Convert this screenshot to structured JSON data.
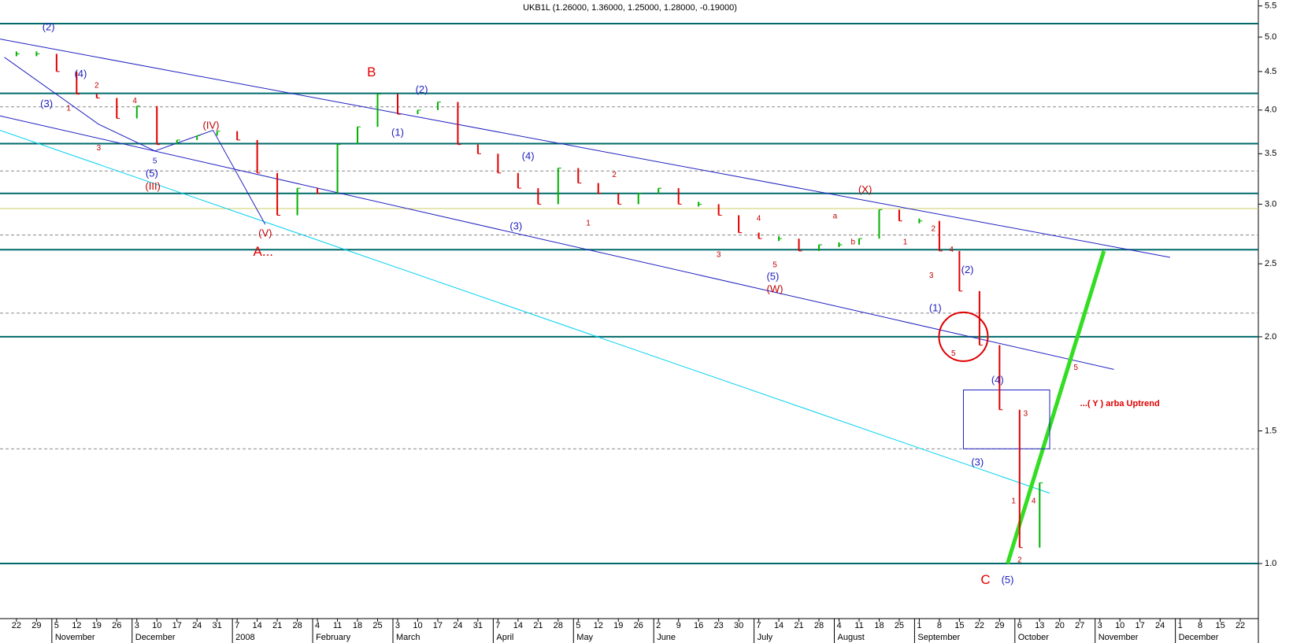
{
  "chart_data": {
    "type": "price",
    "title": "UKB1L (1.26000, 1.36000, 1.25000, 1.28000, -0.19000)",
    "categories": [
      "22",
      "29",
      "5",
      "12",
      "19",
      "26",
      "3",
      "10",
      "17",
      "24",
      "31",
      "7",
      "14",
      "21",
      "28",
      "4",
      "11",
      "18",
      "25",
      "3",
      "10",
      "17",
      "24",
      "31",
      "7",
      "14",
      "21",
      "28",
      "5",
      "12",
      "19",
      "26",
      "2",
      "9",
      "16",
      "23",
      "30",
      "7",
      "14",
      "21",
      "28",
      "4",
      "11",
      "18",
      "25",
      "1",
      "8",
      "15",
      "22",
      "29",
      "6",
      "13",
      "20",
      "27",
      "3",
      "10",
      "17",
      "24",
      "1",
      "8",
      "15",
      "22"
    ],
    "month_labels": [
      null,
      null,
      "November",
      null,
      null,
      null,
      "December",
      null,
      null,
      null,
      null,
      "2008",
      null,
      null,
      null,
      "February",
      null,
      null,
      null,
      "March",
      null,
      null,
      null,
      null,
      "April",
      null,
      null,
      null,
      "May",
      null,
      null,
      null,
      "June",
      null,
      null,
      null,
      null,
      "July",
      null,
      null,
      null,
      "August",
      null,
      null,
      null,
      "September",
      null,
      null,
      null,
      null,
      "October",
      null,
      null,
      null,
      "November",
      null,
      null,
      null,
      "December",
      null,
      null,
      null
    ],
    "values": [
      4.75,
      4.75,
      4.5,
      4.2,
      4.15,
      3.9,
      4.05,
      3.6,
      3.65,
      3.7,
      3.75,
      3.65,
      3.3,
      2.9,
      3.15,
      3.1,
      3.6,
      3.8,
      4.2,
      3.95,
      4.0,
      4.1,
      3.6,
      3.5,
      3.3,
      3.15,
      3.0,
      3.35,
      3.2,
      3.1,
      3.0,
      3.1,
      3.15,
      3.0,
      3.0,
      2.9,
      2.75,
      2.7,
      2.7,
      2.6,
      2.65,
      2.65,
      2.7,
      2.95,
      2.85,
      2.85,
      2.6,
      2.3,
      1.95,
      1.6,
      1.05,
      1.28,
      null,
      null,
      null,
      null,
      null,
      null,
      null,
      null,
      null,
      null
    ],
    "up_color": "#00b000",
    "down_color": "#e00000",
    "xlim": [
      -0.82,
      61.9
    ],
    "ylim": [
      0.845,
      5.6
    ],
    "log_scale": true,
    "yticks": [
      {
        "value": 1,
        "label": "1.0"
      },
      1.5,
      {
        "value": 2,
        "label": "2.0"
      },
      2.5,
      {
        "value": 3,
        "label": "3.0"
      },
      3.5,
      {
        "value": 4,
        "label": "4.0"
      },
      4.5,
      {
        "value": 5,
        "label": "5.0"
      },
      5.5
    ],
    "levels": [
      {
        "value": 5.21,
        "style": "solid",
        "color": "#006a6a"
      },
      {
        "value": 4.21,
        "style": "solid",
        "color": "#006a6a"
      },
      {
        "value": 3.61,
        "style": "solid",
        "color": "#006a6a"
      },
      {
        "value": 3.1,
        "style": "solid",
        "color": "#006a6a"
      },
      {
        "value": 2.61,
        "style": "solid",
        "color": "#006a6a"
      },
      {
        "value": 2.0,
        "style": "solid",
        "color": "#006a6a"
      },
      {
        "value": 1.0,
        "style": "solid",
        "color": "#006a6a"
      },
      {
        "value": 4.04,
        "style": "dashed",
        "color": "#888888"
      },
      {
        "value": 3.32,
        "style": "dashed",
        "color": "#888888"
      },
      {
        "value": 2.73,
        "style": "dashed",
        "color": "#888888"
      },
      {
        "value": 2.15,
        "style": "dashed",
        "color": "#888888"
      },
      {
        "value": 1.42,
        "style": "dashed",
        "color": "#888888"
      },
      {
        "value": 2.96,
        "style": "solid",
        "color": "#cccc66"
      }
    ],
    "trend_lines": [
      {
        "x": [
          -0.82,
          57.5
        ],
        "y": [
          4.97,
          2.55
        ],
        "color": "#2020c0",
        "width": 1
      },
      {
        "x": [
          -0.82,
          54.7
        ],
        "y": [
          3.93,
          1.81
        ],
        "color": "#2020c0",
        "width": 1
      },
      {
        "x": [
          -0.82,
          51.5
        ],
        "y": [
          3.76,
          1.24
        ],
        "color": "#00d0f0",
        "width": 1
      },
      {
        "x": [
          49.4,
          54.2
        ],
        "y": [
          1.0,
          2.6
        ],
        "color": "#33dd22",
        "width": 5
      },
      {
        "x": [
          -0.6,
          4.1,
          6.9,
          9.8,
          12.4
        ],
        "y": [
          4.7,
          3.83,
          3.53,
          3.76,
          2.82
        ],
        "color": "#2020c0",
        "width": 1
      }
    ],
    "circle": {
      "x": 47.2,
      "y": 2.0,
      "color": "#e00000"
    },
    "box": {
      "x": [
        47.2,
        51.5
      ],
      "y": [
        1.7,
        1.42
      ],
      "color": "#2020c0"
    },
    "annotations": [
      {
        "text": "(2)",
        "x": 1.6,
        "y": 5.15,
        "color": "#2020c0"
      },
      {
        "text": "(4)",
        "x": 3.2,
        "y": 4.46,
        "color": "#2020c0"
      },
      {
        "text": "(3)",
        "x": 1.5,
        "y": 4.07,
        "color": "#2020c0"
      },
      {
        "text": "1",
        "x": 2.6,
        "y": 4.02,
        "color": "#c00000"
      },
      {
        "text": "2",
        "x": 4.0,
        "y": 4.31,
        "color": "#c00000"
      },
      {
        "text": "4",
        "x": 5.9,
        "y": 4.11,
        "color": "#c00000"
      },
      {
        "text": "3",
        "x": 4.1,
        "y": 3.56,
        "color": "#c00000"
      },
      {
        "text": "5",
        "x": 6.9,
        "y": 3.42,
        "color": "#2020c0"
      },
      {
        "text": "(5)",
        "x": 6.75,
        "y": 3.29,
        "color": "#2020c0"
      },
      {
        "text": "(III)",
        "x": 6.8,
        "y": 3.16,
        "color": "#c00000"
      },
      {
        "text": "(IV)",
        "x": 9.7,
        "y": 3.81,
        "color": "#c00000"
      },
      {
        "text": "(V)",
        "x": 12.4,
        "y": 2.74,
        "color": "#c00000"
      },
      {
        "text": "A...",
        "x": 12.3,
        "y": 2.59,
        "color": "#e00000"
      },
      {
        "text": "B",
        "x": 17.7,
        "y": 4.48,
        "color": "#e00000"
      },
      {
        "text": "(2)",
        "x": 20.2,
        "y": 4.25,
        "color": "#2020c0"
      },
      {
        "text": "(1)",
        "x": 19.0,
        "y": 3.73,
        "color": "#2020c0"
      },
      {
        "text": "(4)",
        "x": 25.5,
        "y": 3.47,
        "color": "#2020c0"
      },
      {
        "text": "(3)",
        "x": 24.9,
        "y": 2.8,
        "color": "#2020c0"
      },
      {
        "text": "2",
        "x": 29.8,
        "y": 3.28,
        "color": "#c00000"
      },
      {
        "text": "1",
        "x": 28.5,
        "y": 2.83,
        "color": "#c00000"
      },
      {
        "text": "3",
        "x": 35.0,
        "y": 2.57,
        "color": "#c00000"
      },
      {
        "text": "4",
        "x": 37.0,
        "y": 2.87,
        "color": "#c00000"
      },
      {
        "text": "5",
        "x": 37.8,
        "y": 2.49,
        "color": "#c00000"
      },
      {
        "text": "(5)",
        "x": 37.7,
        "y": 2.4,
        "color": "#2020c0"
      },
      {
        "text": "(W)",
        "x": 37.8,
        "y": 2.31,
        "color": "#c00000"
      },
      {
        "text": "(X)",
        "x": 42.3,
        "y": 3.13,
        "color": "#c00000"
      },
      {
        "text": "a",
        "x": 40.8,
        "y": 2.89,
        "color": "#c00000"
      },
      {
        "text": "b",
        "x": 41.7,
        "y": 2.67,
        "color": "#c00000"
      },
      {
        "text": "1",
        "x": 44.3,
        "y": 2.67,
        "color": "#c00000"
      },
      {
        "text": "2",
        "x": 45.7,
        "y": 2.78,
        "color": "#c00000"
      },
      {
        "text": "4",
        "x": 46.6,
        "y": 2.61,
        "color": "#c00000"
      },
      {
        "text": "3",
        "x": 45.6,
        "y": 2.41,
        "color": "#c00000"
      },
      {
        "text": "(2)",
        "x": 47.4,
        "y": 2.45,
        "color": "#2020c0"
      },
      {
        "text": "(1)",
        "x": 45.8,
        "y": 2.18,
        "color": "#2020c0"
      },
      {
        "text": "5",
        "x": 46.7,
        "y": 1.9,
        "color": "#c00000"
      },
      {
        "text": "(4)",
        "x": 48.9,
        "y": 1.75,
        "color": "#2020c0"
      },
      {
        "text": "5",
        "x": 52.8,
        "y": 1.82,
        "color": "#c00000"
      },
      {
        "text": "...( Y ) arba Uptrend",
        "x": 55,
        "y": 1.63,
        "color": "#e00000"
      },
      {
        "text": "3",
        "x": 50.3,
        "y": 1.58,
        "color": "#c00000"
      },
      {
        "text": "(3)",
        "x": 47.9,
        "y": 1.36,
        "color": "#2020c0"
      },
      {
        "text": "1",
        "x": 49.7,
        "y": 1.21,
        "color": "#c00000"
      },
      {
        "text": "4",
        "x": 50.7,
        "y": 1.21,
        "color": "#c00000"
      },
      {
        "text": "2",
        "x": 50.0,
        "y": 1.01,
        "color": "#c00000"
      },
      {
        "text": "C",
        "x": 48.3,
        "y": 0.95,
        "color": "#e00000"
      },
      {
        "text": "(5)",
        "x": 49.4,
        "y": 0.95,
        "color": "#2020c0"
      }
    ]
  }
}
